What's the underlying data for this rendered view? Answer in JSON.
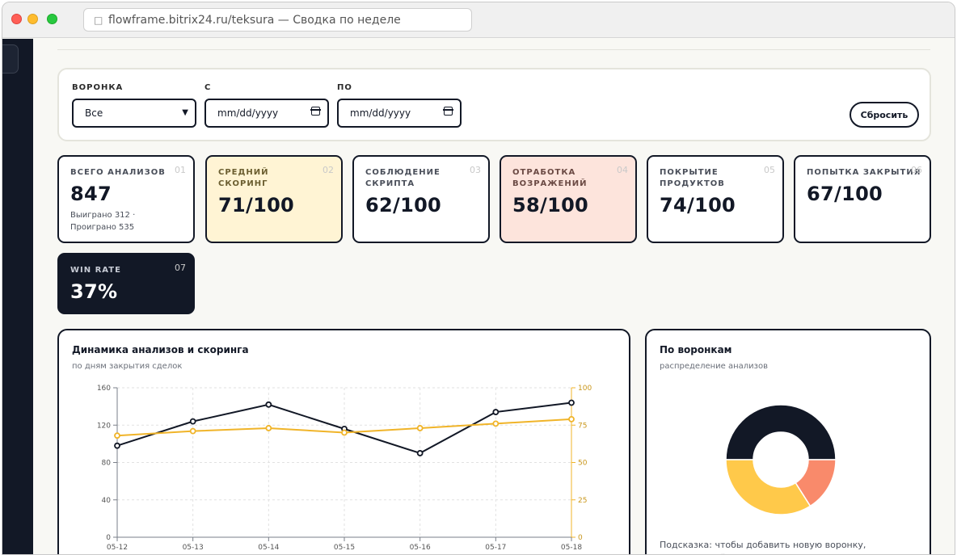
{
  "browser": {
    "url_text": "flowframe.bitrix24.ru/teksura — Сводка по неделе",
    "lock_icon": "page-icon"
  },
  "filters": {
    "funnel_label": "ВОРОНКА",
    "funnel_value": "Все",
    "from_label": "С",
    "from_placeholder": "mm/dd/yyyy",
    "to_label": "ПО",
    "to_placeholder": "mm/dd/yyyy",
    "reset_label": "Сбросить"
  },
  "cards": [
    {
      "title": "ВСЕГО АНАЛИЗОВ",
      "number": "01",
      "value": "847",
      "sub": "Выиграно 312 · Проиграно 535"
    },
    {
      "title": "СРЕДНИЙ СКОРИНГ",
      "number": "02",
      "value": "71/100"
    },
    {
      "title": "СОБЛЮДЕНИЕ СКРИПТА",
      "number": "03",
      "value": "62/100"
    },
    {
      "title": "ОТРАБОТКА ВОЗРАЖЕНИЙ",
      "number": "04",
      "value": "58/100"
    },
    {
      "title": "ПОКРЫТИЕ ПРОДУКТОВ",
      "number": "05",
      "value": "74/100"
    },
    {
      "title": "ПОПЫТКА ЗАКРЫТИЯ",
      "number": "06",
      "value": "67/100"
    },
    {
      "title": "WIN RATE",
      "number": "07",
      "value": "37%"
    }
  ],
  "line_panel": {
    "title": "Динамика анализов и скоринга",
    "subtitle": "по дням закрытия сделок"
  },
  "donut_panel": {
    "title": "По воронкам",
    "subtitle": "распределение анализов",
    "hint": "Подсказка: чтобы добавить новую воронку, отредактируйте её в разделе «Воронки и скрипты»."
  },
  "colors": {
    "dark": "#121826",
    "accent_yellow": "#f0b429",
    "donut_yellow": "#ffc94a",
    "donut_coral": "#f98a6b"
  },
  "chart_data": [
    {
      "type": "line",
      "x": [
        "05-12",
        "05-13",
        "05-14",
        "05-15",
        "05-16",
        "05-17",
        "05-18"
      ],
      "series": [
        {
          "axis": "left",
          "color": "#121826",
          "values": [
            98,
            124,
            142,
            116,
            90,
            134,
            144
          ]
        },
        {
          "axis": "right",
          "color": "#f0b429",
          "values": [
            68,
            71,
            73,
            70,
            73,
            76,
            79
          ]
        }
      ],
      "ylim_left": [
        0,
        160
      ],
      "yticks_left": [
        "0",
        "40",
        "80",
        "120",
        "160"
      ],
      "ylim_right": [
        0,
        100
      ],
      "yticks_right": [
        "0",
        "25",
        "50",
        "75",
        "100"
      ],
      "grid": true
    },
    {
      "type": "pie",
      "donut": true,
      "slices": [
        {
          "color": "#121826",
          "value": 50
        },
        {
          "color": "#f98a6b",
          "value": 16
        },
        {
          "color": "#ffc94a",
          "value": 34
        }
      ]
    }
  ]
}
